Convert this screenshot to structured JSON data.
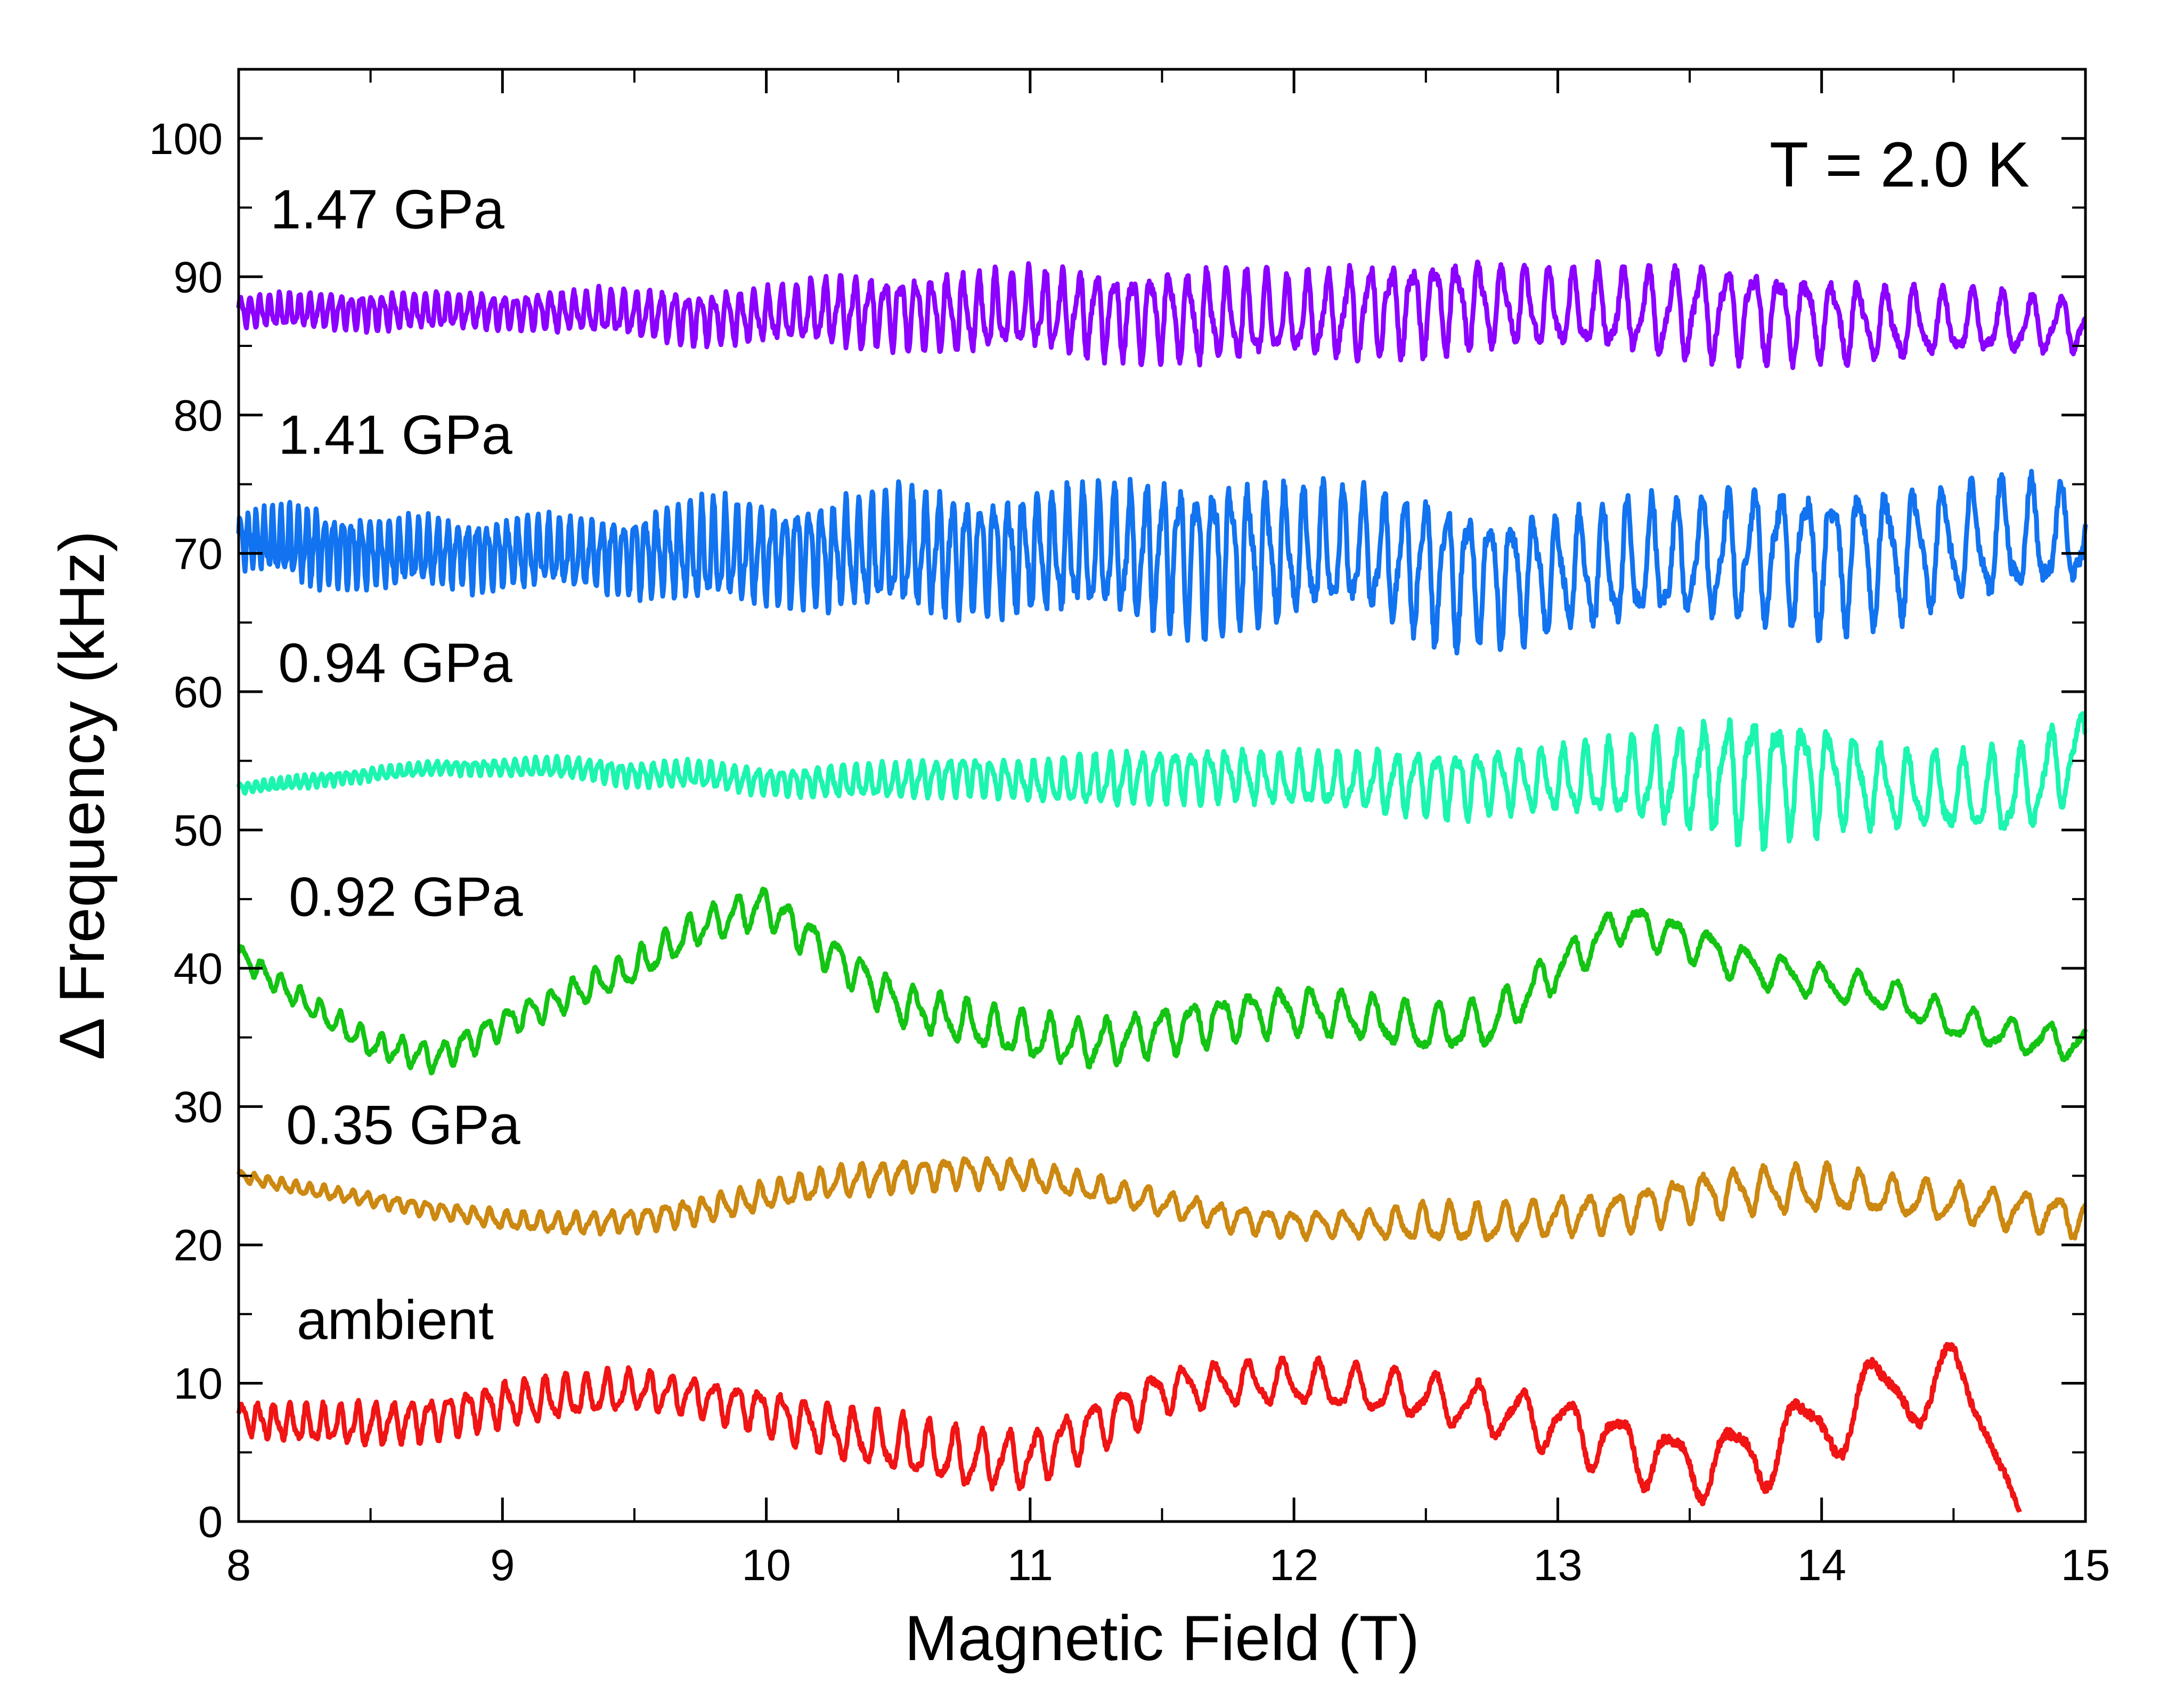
{
  "chart_data": {
    "type": "line",
    "xlabel": "Magnetic Field (T)",
    "ylabel": "Δ Frequency (kHz)",
    "xlim": [
      8,
      15
    ],
    "ylim": [
      0,
      105
    ],
    "x_ticks": [
      "8",
      "9",
      "10",
      "11",
      "12",
      "13",
      "14",
      "15"
    ],
    "y_ticks": [
      "0",
      "10",
      "20",
      "30",
      "40",
      "50",
      "60",
      "70",
      "80",
      "90",
      "100"
    ],
    "grid": false,
    "annotation": "T = 2.0 K",
    "series": [
      {
        "name": "1.47 GPa",
        "color": "#8B00FF",
        "label_pos": [
          8.12,
          93.5
        ],
        "x": [
          8.0,
          8.25,
          8.5,
          8.75,
          9.0,
          9.25,
          9.5,
          9.75,
          10.0,
          10.25,
          10.5,
          10.75,
          11.0,
          11.25,
          11.5,
          11.75,
          12.0,
          12.25,
          12.5,
          12.75,
          13.0,
          13.25,
          13.5,
          13.75,
          14.0,
          14.25,
          14.5,
          14.75,
          15.0
        ],
        "baseline": [
          87.5,
          87.5,
          87.5,
          87.5,
          87.5,
          87.5,
          87.3,
          87.0,
          87.2,
          87.5,
          87.5,
          87.3,
          87.5,
          87.4,
          87.3,
          87.0,
          87.0,
          87.5,
          88.0,
          88.0,
          87.5,
          87.5,
          87.5,
          87.5,
          87.0,
          86.5,
          86.5,
          86.5,
          86.5
        ],
        "amplitude": [
          1.2,
          1.3,
          1.4,
          1.4,
          1.3,
          1.5,
          1.8,
          2.0,
          2.0,
          2.5,
          2.8,
          3.0,
          3.0,
          3.2,
          3.3,
          3.5,
          3.0,
          3.5,
          3.5,
          3.3,
          3.0,
          3.2,
          3.5,
          3.5,
          3.2,
          2.8,
          2.5,
          2.3,
          2.0
        ],
        "freq": [
          28,
          26,
          25,
          24,
          23,
          22,
          21,
          20,
          19,
          18,
          17,
          16.5,
          16,
          15,
          14,
          13.5,
          13,
          12.5,
          12,
          11.5,
          11,
          10.5,
          10,
          10,
          10,
          9.5,
          9,
          9,
          9
        ]
      },
      {
        "name": "1.41 GPa",
        "color": "#1273F0",
        "label_pos": [
          8.15,
          77.2
        ],
        "x": [
          8.0,
          8.25,
          8.5,
          8.75,
          9.0,
          9.25,
          9.5,
          9.75,
          10.0,
          10.25,
          10.5,
          10.75,
          11.0,
          11.25,
          11.5,
          11.75,
          12.0,
          12.25,
          12.5,
          12.75,
          13.0,
          13.25,
          13.5,
          13.75,
          14.0,
          14.25,
          14.5,
          14.75,
          15.0
        ],
        "baseline": [
          71.0,
          70.5,
          70.0,
          70.0,
          70.0,
          70.0,
          70.0,
          70.0,
          70.0,
          70.0,
          70.0,
          70.0,
          70.0,
          70.0,
          70.0,
          70.0,
          70.0,
          70.0,
          69.0,
          68.5,
          68.5,
          69.0,
          69.5,
          70.0,
          70.0,
          70.0,
          70.5,
          71.0,
          71.0
        ],
        "amplitude": [
          2.0,
          3.0,
          2.6,
          2.6,
          2.6,
          2.6,
          3.0,
          3.8,
          3.8,
          4.0,
          4.5,
          4.5,
          4.5,
          4.8,
          5.5,
          5.8,
          5.0,
          4.5,
          5.5,
          5.0,
          4.5,
          4.8,
          4.5,
          5.0,
          5.5,
          5.0,
          4.5,
          4.5,
          3.5
        ],
        "freq": [
          34,
          30,
          28,
          27,
          26,
          25,
          24,
          23,
          22,
          21,
          20,
          19,
          18,
          17,
          16,
          15,
          14,
          13,
          12.5,
          12,
          11.5,
          11,
          10.5,
          10,
          10,
          9.5,
          9,
          9,
          9
        ]
      },
      {
        "name": "0.94 GPa",
        "color": "#1CF5B0",
        "label_pos": [
          8.15,
          60.7
        ],
        "x": [
          8.0,
          8.25,
          8.5,
          8.75,
          9.0,
          9.25,
          9.5,
          9.75,
          10.0,
          10.25,
          10.5,
          10.75,
          11.0,
          11.25,
          11.5,
          11.75,
          12.0,
          12.25,
          12.5,
          12.75,
          13.0,
          13.25,
          13.5,
          13.75,
          14.0,
          14.25,
          14.5,
          14.75,
          15.0
        ],
        "baseline": [
          53.0,
          53.5,
          54.0,
          54.5,
          54.5,
          54.5,
          54.0,
          54.0,
          53.5,
          53.5,
          53.5,
          54.0,
          53.5,
          53.5,
          54.0,
          54.0,
          53.5,
          53.5,
          53.5,
          53.5,
          53.5,
          53.5,
          54.0,
          54.0,
          54.0,
          53.0,
          52.5,
          52.5,
          56.0
        ],
        "amplitude": [
          0.4,
          0.5,
          0.5,
          0.5,
          0.6,
          0.8,
          0.9,
          1.0,
          1.0,
          1.2,
          1.3,
          1.5,
          1.5,
          2.0,
          2.0,
          2.0,
          2.0,
          2.2,
          2.5,
          2.5,
          2.5,
          3.0,
          4.0,
          5.0,
          4.0,
          3.0,
          3.0,
          3.5,
          3.0
        ],
        "freq": [
          34,
          32,
          30,
          28,
          26,
          25,
          24,
          23,
          22,
          21,
          20,
          19,
          18,
          17,
          16,
          15,
          14,
          13.5,
          13,
          12.5,
          12,
          11.5,
          11,
          10.5,
          10,
          10,
          9.5,
          9,
          9
        ]
      },
      {
        "name": "0.92 GPa",
        "color": "#14C414",
        "label_pos": [
          8.19,
          43.8
        ],
        "x": [
          8.0,
          8.25,
          8.5,
          8.75,
          9.0,
          9.25,
          9.5,
          9.75,
          10.0,
          10.25,
          10.5,
          10.75,
          11.0,
          11.25,
          11.5,
          11.75,
          12.0,
          12.25,
          12.5,
          12.75,
          13.0,
          13.25,
          13.5,
          13.75,
          14.0,
          14.25,
          14.5,
          14.75,
          15.0
        ],
        "baseline": [
          41.0,
          37.5,
          34.5,
          33.5,
          36.0,
          38.0,
          40.0,
          43.0,
          44.5,
          41.0,
          37.5,
          36.0,
          35.0,
          34.5,
          35.5,
          36.5,
          37.0,
          36.5,
          35.5,
          36.0,
          40.0,
          43.5,
          42.0,
          40.0,
          39.0,
          38.0,
          36.0,
          35.0,
          34.5
        ],
        "amplitude": [
          0.8,
          0.9,
          1.0,
          1.1,
          1.1,
          1.2,
          1.3,
          1.4,
          1.5,
          1.5,
          1.6,
          1.7,
          1.8,
          1.8,
          1.8,
          1.8,
          1.8,
          1.8,
          1.8,
          1.8,
          1.6,
          1.5,
          1.5,
          1.4,
          1.3,
          1.3,
          1.3,
          1.3,
          1.3
        ],
        "freq": [
          14,
          13.5,
          13,
          12.5,
          12,
          12,
          11.5,
          11,
          10.5,
          10.5,
          10,
          10,
          9.5,
          9.5,
          9,
          9,
          8.5,
          8.5,
          8,
          8,
          8,
          7.5,
          7.5,
          7,
          7,
          7,
          7,
          7,
          7
        ]
      },
      {
        "name": "0.35 GPa",
        "color": "#CC8810",
        "label_pos": [
          8.18,
          27.3
        ],
        "x": [
          8.0,
          8.25,
          8.5,
          8.75,
          9.0,
          9.25,
          9.5,
          9.75,
          10.0,
          10.25,
          10.5,
          10.75,
          11.0,
          11.25,
          11.5,
          11.75,
          12.0,
          12.25,
          12.5,
          12.75,
          13.0,
          13.25,
          13.5,
          13.75,
          14.0,
          14.25,
          14.5,
          14.75,
          15.0
        ],
        "baseline": [
          25.0,
          24.0,
          23.3,
          22.5,
          21.8,
          21.5,
          21.8,
          22.5,
          23.5,
          24.5,
          25.0,
          25.3,
          25.0,
          24.0,
          23.0,
          22.0,
          21.5,
          21.5,
          21.5,
          21.5,
          22.0,
          22.5,
          23.5,
          24.0,
          24.0,
          23.5,
          23.0,
          22.5,
          22.0
        ],
        "amplitude": [
          0.4,
          0.5,
          0.5,
          0.6,
          0.7,
          0.8,
          0.9,
          1.0,
          1.1,
          1.2,
          1.2,
          1.2,
          1.1,
          1.0,
          1.0,
          1.0,
          1.0,
          1.0,
          1.5,
          1.5,
          1.5,
          1.5,
          1.8,
          1.8,
          1.8,
          1.5,
          1.5,
          1.5,
          1.5
        ],
        "freq": [
          20,
          19,
          18,
          17,
          16,
          15,
          14.5,
          14,
          13.5,
          13,
          12.5,
          12,
          12,
          11.5,
          11,
          11,
          10.5,
          10,
          10,
          9.5,
          9.5,
          9,
          9,
          8.5,
          8.5,
          8,
          8,
          8,
          8
        ]
      },
      {
        "name": "ambient",
        "color": "#F01414",
        "label_pos": [
          8.22,
          13.2
        ],
        "x": [
          8.0,
          8.25,
          8.5,
          8.75,
          9.0,
          9.25,
          9.5,
          9.75,
          10.0,
          10.25,
          10.5,
          10.75,
          11.0,
          11.25,
          11.5,
          11.75,
          12.0,
          12.25,
          12.5,
          12.75,
          13.0,
          13.25,
          13.5,
          13.75,
          14.0,
          14.25,
          14.5,
          14.7,
          14.75
        ],
        "baseline": [
          7.5,
          7.0,
          7.0,
          7.5,
          8.5,
          9.0,
          9.5,
          9.0,
          8.0,
          6.5,
          5.5,
          4.5,
          4.5,
          7.0,
          9.5,
          10.0,
          10.0,
          9.5,
          9.0,
          8.0,
          7.0,
          5.5,
          4.0,
          5.0,
          7.0,
          9.5,
          10.0,
          5.0,
          1.0
        ],
        "amplitude": [
          1.2,
          1.5,
          1.6,
          1.6,
          1.7,
          1.7,
          1.5,
          1.5,
          1.7,
          2.0,
          2.2,
          2.2,
          2.2,
          2.0,
          1.7,
          1.7,
          1.7,
          1.8,
          1.8,
          2.0,
          2.2,
          2.5,
          2.5,
          2.8,
          3.0,
          3.0,
          2.8,
          2.0,
          1.0
        ],
        "freq": [
          17,
          16,
          15,
          14,
          13.5,
          13,
          12.5,
          12,
          11.5,
          11,
          10.5,
          10,
          9.5,
          9,
          8.5,
          8,
          7.5,
          7,
          6.5,
          6,
          5.5,
          5,
          4.5,
          4,
          3.5,
          3.5,
          3,
          3,
          3
        ]
      }
    ]
  }
}
